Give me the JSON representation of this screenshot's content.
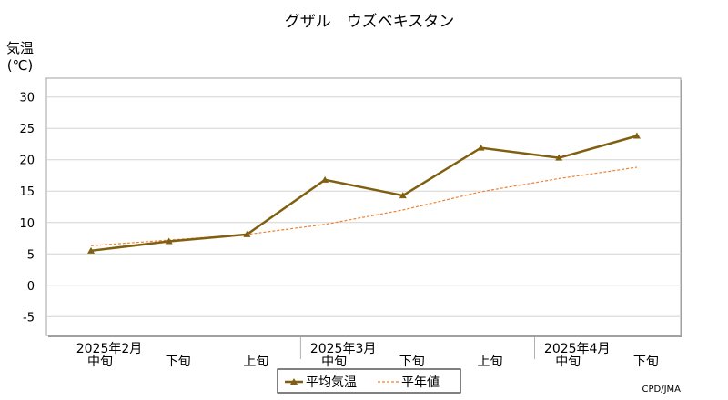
{
  "chart_data": {
    "type": "line",
    "title": "グザル　ウズベキスタン",
    "ylabel_line1": "気温",
    "ylabel_line2": "(℃)",
    "ylim": [
      -8,
      33
    ],
    "yticks": [
      -5,
      0,
      5,
      10,
      15,
      20,
      25,
      30
    ],
    "grid": true,
    "categories": [
      "中旬",
      "下旬",
      "上旬",
      "中旬",
      "下旬",
      "上旬",
      "中旬",
      "下旬"
    ],
    "month_labels": [
      {
        "label": "2025年2月",
        "category_index": 0
      },
      {
        "label": "2025年3月",
        "category_index": 3
      },
      {
        "label": "2025年4月",
        "category_index": 6
      }
    ],
    "series": [
      {
        "name": "平均気温",
        "color": "#806010",
        "style": "solid-marker",
        "values": [
          5.5,
          7.0,
          8.1,
          16.8,
          14.3,
          21.9,
          20.3,
          23.8
        ]
      },
      {
        "name": "平年値",
        "color": "#f08030",
        "style": "dashed",
        "values": [
          6.3,
          7.2,
          8.1,
          9.7,
          12.0,
          14.9,
          17.0,
          18.8
        ]
      }
    ],
    "legend_position": "bottom-center",
    "source": "CPD/JMA"
  }
}
